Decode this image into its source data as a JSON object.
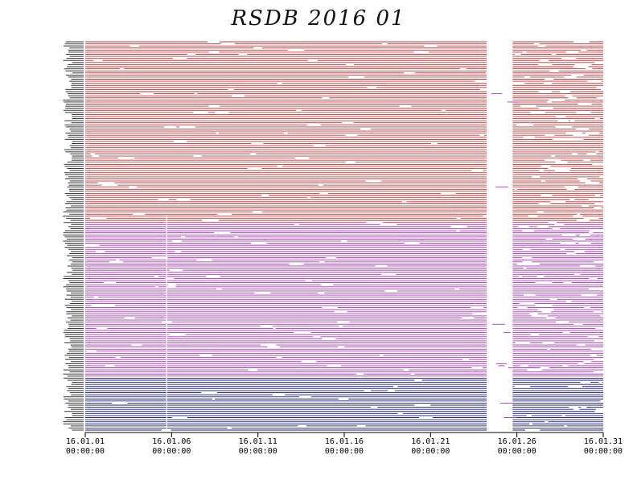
{
  "chart_data": {
    "type": "line",
    "title": "RSDB  2016  01",
    "xlabel": "",
    "ylabel": "",
    "x_tick_labels": [
      {
        "date": "16.01.01",
        "time": "00:00:00"
      },
      {
        "date": "16.01.06",
        "time": "00:00:00"
      },
      {
        "date": "16.01.11",
        "time": "00:00:00"
      },
      {
        "date": "16.01.16",
        "time": "00:00:00"
      },
      {
        "date": "16.01.21",
        "time": "00:00:00"
      },
      {
        "date": "16.01.26",
        "time": "00:00:00"
      },
      {
        "date": "16.01.31",
        "time": "00:00:00"
      }
    ],
    "xlim": [
      "2016-01-01T00:00:00",
      "2016-01-31T00:00:00"
    ],
    "grid": false,
    "legend": "none",
    "station_labels_legible": false,
    "data_gap": {
      "start": "2016-01-24T06:00:00",
      "end": "2016-01-25T18:00:00"
    },
    "series_groups": [
      {
        "color": "#cc3333",
        "row_count": 88
      },
      {
        "color": "#aa33bb",
        "row_count": 74
      },
      {
        "color": "#1a1a88",
        "row_count": 26
      }
    ]
  }
}
